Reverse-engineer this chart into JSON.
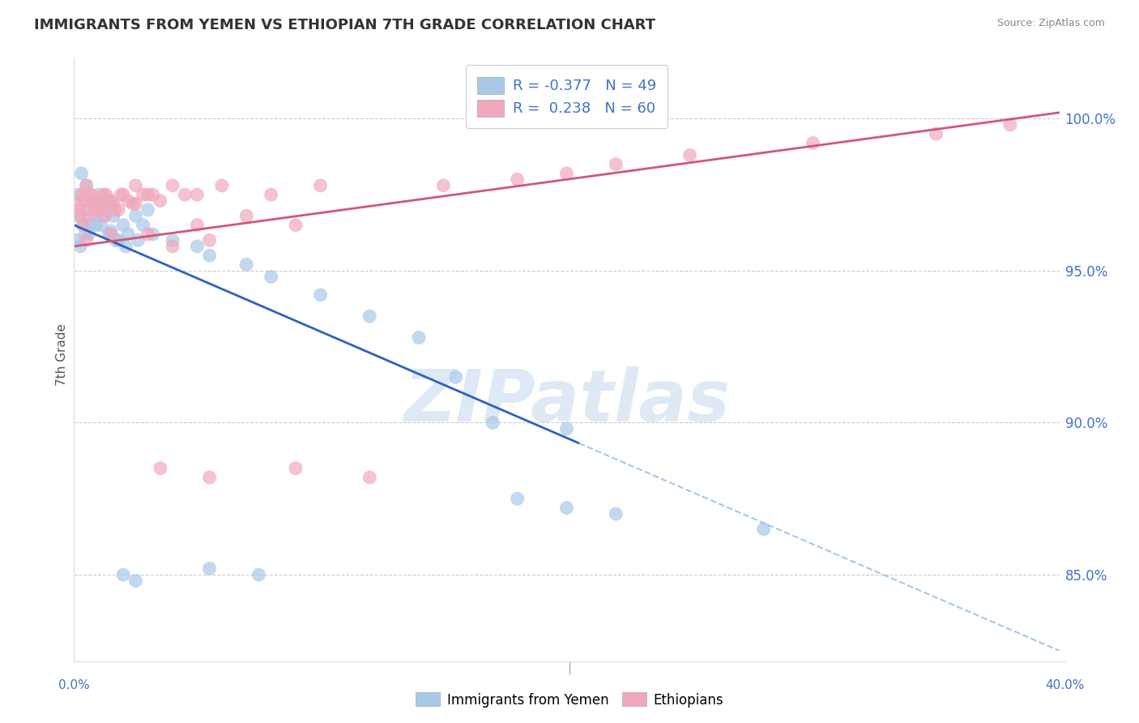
{
  "title": "IMMIGRANTS FROM YEMEN VS ETHIOPIAN 7TH GRADE CORRELATION CHART",
  "source": "Source: ZipAtlas.com",
  "ylabel": "7th Grade",
  "yticks": [
    85.0,
    90.0,
    95.0,
    100.0
  ],
  "ytick_labels": [
    "85.0%",
    "90.0%",
    "95.0%",
    "100.0%"
  ],
  "xmin": 0.0,
  "xmax": 40.0,
  "ymin": 82.5,
  "ymax": 102.0,
  "r_blue": -0.377,
  "n_blue": 49,
  "r_pink": 0.238,
  "n_pink": 60,
  "blue_color": "#a8c8e8",
  "pink_color": "#f0a8bc",
  "blue_line_color": "#3060c0",
  "pink_line_color": "#d05878",
  "watermark": "ZIPatlas",
  "legend_label_blue": "Immigrants from Yemen",
  "legend_label_pink": "Ethiopians",
  "blue_line_x0": 0.0,
  "blue_line_y0": 96.5,
  "blue_line_x1": 40.0,
  "blue_line_y1": 82.5,
  "blue_solid_end_x": 20.5,
  "pink_line_x0": 0.0,
  "pink_line_y0": 95.8,
  "pink_line_x1": 40.0,
  "pink_line_y1": 100.2,
  "blue_dots": [
    [
      0.15,
      97.5
    ],
    [
      0.3,
      98.2
    ],
    [
      0.5,
      97.8
    ],
    [
      0.7,
      97.2
    ],
    [
      1.0,
      97.5
    ],
    [
      1.3,
      97.0
    ],
    [
      1.6,
      96.8
    ],
    [
      2.0,
      96.5
    ],
    [
      2.5,
      96.8
    ],
    [
      3.0,
      97.0
    ],
    [
      0.2,
      96.8
    ],
    [
      0.4,
      96.5
    ],
    [
      0.6,
      96.2
    ],
    [
      0.9,
      96.5
    ],
    [
      1.2,
      96.8
    ],
    [
      1.5,
      96.3
    ],
    [
      1.8,
      96.0
    ],
    [
      2.2,
      96.2
    ],
    [
      2.8,
      96.5
    ],
    [
      0.1,
      96.0
    ],
    [
      0.25,
      95.8
    ],
    [
      0.45,
      96.2
    ],
    [
      0.65,
      96.5
    ],
    [
      0.85,
      96.8
    ],
    [
      1.1,
      96.5
    ],
    [
      1.4,
      96.2
    ],
    [
      1.7,
      96.0
    ],
    [
      2.1,
      95.8
    ],
    [
      2.6,
      96.0
    ],
    [
      3.2,
      96.2
    ],
    [
      4.0,
      96.0
    ],
    [
      5.0,
      95.8
    ],
    [
      5.5,
      95.5
    ],
    [
      7.0,
      95.2
    ],
    [
      8.0,
      94.8
    ],
    [
      10.0,
      94.2
    ],
    [
      12.0,
      93.5
    ],
    [
      14.0,
      92.8
    ],
    [
      15.5,
      91.5
    ],
    [
      17.0,
      90.0
    ],
    [
      20.0,
      89.8
    ],
    [
      2.0,
      85.0
    ],
    [
      2.5,
      84.8
    ],
    [
      5.5,
      85.2
    ],
    [
      7.5,
      85.0
    ],
    [
      18.0,
      87.5
    ],
    [
      20.0,
      87.2
    ],
    [
      22.0,
      87.0
    ],
    [
      28.0,
      86.5
    ]
  ],
  "pink_dots": [
    [
      0.15,
      97.2
    ],
    [
      0.3,
      97.5
    ],
    [
      0.5,
      97.8
    ],
    [
      0.7,
      97.5
    ],
    [
      1.0,
      97.2
    ],
    [
      1.3,
      97.5
    ],
    [
      1.6,
      97.2
    ],
    [
      2.0,
      97.5
    ],
    [
      2.5,
      97.8
    ],
    [
      3.0,
      97.5
    ],
    [
      0.2,
      97.0
    ],
    [
      0.4,
      97.3
    ],
    [
      0.6,
      97.5
    ],
    [
      0.9,
      97.2
    ],
    [
      1.2,
      97.5
    ],
    [
      1.5,
      97.3
    ],
    [
      1.8,
      97.0
    ],
    [
      2.2,
      97.3
    ],
    [
      2.8,
      97.5
    ],
    [
      3.5,
      97.3
    ],
    [
      0.25,
      96.8
    ],
    [
      0.55,
      97.0
    ],
    [
      0.8,
      97.2
    ],
    [
      1.1,
      97.0
    ],
    [
      1.4,
      97.3
    ],
    [
      1.9,
      97.5
    ],
    [
      2.4,
      97.2
    ],
    [
      3.2,
      97.5
    ],
    [
      4.0,
      97.8
    ],
    [
      5.0,
      97.5
    ],
    [
      0.35,
      96.5
    ],
    [
      0.65,
      96.8
    ],
    [
      0.95,
      97.0
    ],
    [
      1.25,
      96.8
    ],
    [
      1.65,
      97.0
    ],
    [
      2.5,
      97.2
    ],
    [
      4.5,
      97.5
    ],
    [
      6.0,
      97.8
    ],
    [
      8.0,
      97.5
    ],
    [
      10.0,
      97.8
    ],
    [
      3.0,
      96.2
    ],
    [
      5.0,
      96.5
    ],
    [
      7.0,
      96.8
    ],
    [
      9.0,
      96.5
    ],
    [
      4.0,
      95.8
    ],
    [
      5.5,
      96.0
    ],
    [
      3.5,
      88.5
    ],
    [
      5.5,
      88.2
    ],
    [
      9.0,
      88.5
    ],
    [
      12.0,
      88.2
    ],
    [
      15.0,
      97.8
    ],
    [
      18.0,
      98.0
    ],
    [
      20.0,
      98.2
    ],
    [
      22.0,
      98.5
    ],
    [
      25.0,
      98.8
    ],
    [
      30.0,
      99.2
    ],
    [
      35.0,
      99.5
    ],
    [
      38.0,
      99.8
    ],
    [
      0.5,
      96.0
    ],
    [
      1.5,
      96.2
    ]
  ]
}
